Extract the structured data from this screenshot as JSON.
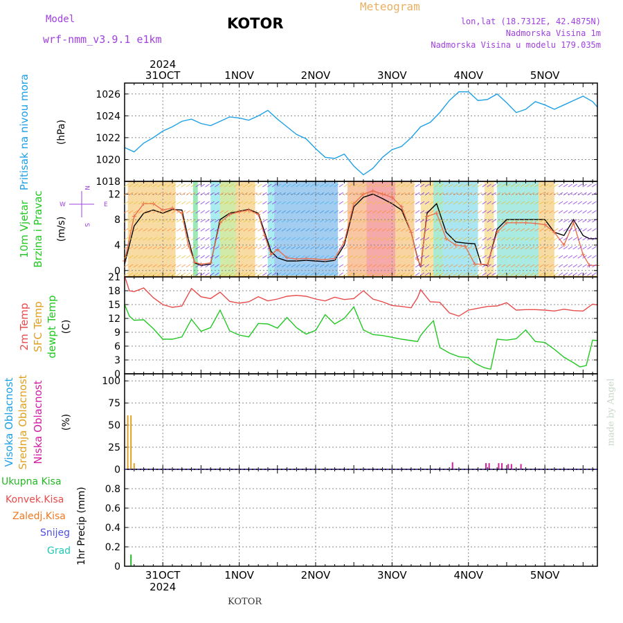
{
  "header": {
    "model_label": "Model",
    "model_name": "wrf-nmm_v3.9.1 e1km",
    "station": "KOTOR",
    "product": "Meteogram",
    "lonlat": "lon,lat (18.7312E, 42.4875N)",
    "elevation": "Nadmorska Visina 1m",
    "model_elevation": "Nadmorska Visina u modelu 179.035m",
    "footer_station": "KOTOR",
    "watermark": "made by Angel"
  },
  "colors": {
    "pressure": "#1ea0e6",
    "temp2m": "#e84a4a",
    "sfc_temp": "#e0a020",
    "dewpoint": "#22c822",
    "cloud_high": "#1ea0e6",
    "cloud_mid": "#e0a020",
    "cloud_low": "#d21ea0",
    "precip_total": "#22b822",
    "precip_conv": "#e84a4a",
    "precip_frz": "#f07820",
    "snow": "#5050e0",
    "hail": "#20c8b4",
    "wind_speed": "#000000",
    "gust": "#e87050"
  },
  "time_axis": {
    "year": "2024",
    "day_labels": [
      "31OCT",
      "1NOV",
      "2NOV",
      "3NOV",
      "4NOV",
      "5NOV"
    ],
    "start_hour": 0,
    "end_hour": 148.5
  },
  "chart_data": [
    {
      "type": "line",
      "ylabel": "Pritisak na nivou mora",
      "unit": "(hPa)",
      "ylim": [
        1018,
        1027
      ],
      "yticks": [
        1018,
        1020,
        1022,
        1024,
        1026
      ],
      "series": [
        {
          "key": "pressure",
          "x": [
            0,
            3,
            6,
            9,
            12,
            15,
            18,
            21,
            24,
            27,
            30,
            33,
            36,
            39,
            42,
            45,
            48,
            51,
            54,
            57,
            60,
            63,
            66,
            69,
            72,
            75,
            78,
            81,
            84,
            87,
            90,
            93,
            96,
            99,
            102,
            105,
            108,
            111,
            114,
            117,
            120,
            123,
            126,
            129,
            132,
            135,
            138,
            141,
            144,
            147,
            148.5
          ],
          "y": [
            1021.1,
            1020.7,
            1021.5,
            1022.0,
            1022.6,
            1023.0,
            1023.5,
            1023.7,
            1023.3,
            1023.1,
            1023.5,
            1023.9,
            1023.8,
            1023.6,
            1024.0,
            1024.5,
            1023.7,
            1023.0,
            1022.3,
            1021.9,
            1021.0,
            1020.2,
            1020.1,
            1020.5,
            1019.4,
            1018.6,
            1019.2,
            1020.2,
            1020.9,
            1021.2,
            1022.0,
            1023.0,
            1023.4,
            1024.3,
            1025.4,
            1026.2,
            1026.2,
            1025.4,
            1025.5,
            1026.0,
            1025.2,
            1024.3,
            1024.6,
            1025.3,
            1025.0,
            1024.6,
            1025.0,
            1025.4,
            1025.8,
            1025.3,
            1024.8
          ]
        }
      ]
    },
    {
      "type": "line",
      "ylabel": "10m Vjetar Brzina i Pravac",
      "unit": "(m/s)",
      "ylim": [
        -1,
        14
      ],
      "yticks": [
        0,
        4,
        8,
        12
      ],
      "legend_rose": "N S W E",
      "series": [
        {
          "key": "wind_speed",
          "x": [
            0,
            3,
            6,
            9,
            12,
            15,
            18,
            20,
            22,
            24,
            27,
            30,
            33,
            36,
            39,
            42,
            44,
            46,
            48,
            51,
            54,
            57,
            60,
            63,
            66,
            69,
            72,
            75,
            78,
            81,
            84,
            87,
            90,
            92,
            93,
            95,
            98,
            101,
            104,
            107,
            110,
            112,
            114,
            117,
            120,
            123,
            126,
            129,
            132,
            135,
            138,
            141,
            144,
            146,
            148.5
          ],
          "y": [
            1.0,
            7.0,
            9.0,
            9.5,
            9.0,
            9.6,
            9.5,
            5.0,
            1.2,
            0.8,
            1.0,
            8.0,
            9.0,
            9.3,
            9.6,
            9.0,
            6.0,
            3.0,
            2.0,
            1.5,
            1.5,
            1.6,
            1.5,
            1.4,
            1.6,
            4.0,
            10.0,
            11.5,
            12.0,
            11.3,
            10.5,
            9.5,
            6.0,
            2.0,
            0.5,
            9.0,
            10.5,
            6.0,
            4.5,
            4.3,
            4.2,
            1.0,
            0.8,
            6.5,
            8.0,
            8.0,
            8.0,
            8.0,
            8.0,
            6.0,
            5.5,
            8.0,
            5.5,
            5.0,
            5.0
          ]
        },
        {
          "key": "gust",
          "x": [
            0,
            3,
            6,
            9,
            12,
            15,
            18,
            20,
            22,
            24,
            27,
            30,
            33,
            36,
            39,
            42,
            44,
            46,
            48,
            51,
            54,
            57,
            60,
            63,
            66,
            69,
            72,
            75,
            78,
            81,
            84,
            87,
            90,
            92,
            93,
            95,
            98,
            101,
            104,
            107,
            110,
            112,
            114,
            117,
            120,
            123,
            126,
            129,
            132,
            135,
            138,
            141,
            144,
            146,
            148.5
          ],
          "y": [
            1.5,
            8.5,
            10.5,
            10.5,
            9.5,
            9.8,
            9.0,
            4.0,
            1.3,
            1.0,
            1.2,
            7.5,
            8.8,
            9.2,
            9.5,
            8.8,
            5.5,
            2.5,
            3.3,
            2.0,
            1.8,
            1.9,
            1.8,
            1.7,
            1.9,
            4.5,
            10.5,
            12.0,
            12.5,
            12.0,
            11.5,
            10.0,
            6.0,
            1.8,
            0.8,
            8.5,
            9.0,
            5.0,
            4.0,
            3.8,
            1.0,
            1.0,
            0.9,
            6.0,
            7.5,
            7.5,
            7.5,
            7.4,
            7.2,
            6.0,
            4.0,
            7.5,
            2.5,
            0.8,
            0.8
          ]
        }
      ]
    },
    {
      "type": "line",
      "ylabel": "2m Temp SFC Temp dewpt Temp",
      "unit": "(C)",
      "ylim": [
        0,
        21
      ],
      "yticks": [
        0,
        3,
        6,
        9,
        12,
        15,
        18,
        21
      ],
      "series": [
        {
          "key": "sfc_temp",
          "x": [
            0,
            148.5
          ],
          "y": [
            21.1,
            21.1
          ]
        },
        {
          "key": "temp2m",
          "x": [
            0,
            1.5,
            3,
            6,
            9,
            12,
            15,
            18,
            21,
            24,
            27,
            30,
            33,
            36,
            39,
            42,
            45,
            48,
            51,
            54,
            57,
            60,
            63,
            66,
            69,
            72,
            75,
            78,
            81,
            84,
            87,
            90,
            92,
            93,
            96,
            99,
            102,
            105,
            108,
            111,
            114,
            117,
            120,
            123,
            126,
            129,
            132,
            135,
            138,
            141,
            144,
            147,
            148.5
          ],
          "y": [
            21.2,
            18.0,
            17.8,
            18.6,
            16.5,
            15.0,
            14.4,
            14.7,
            18.5,
            16.7,
            16.3,
            17.7,
            15.7,
            15.3,
            15.6,
            16.7,
            15.8,
            16.2,
            16.8,
            17.0,
            16.8,
            16.2,
            15.8,
            16.6,
            16.1,
            16.3,
            18.0,
            16.2,
            15.6,
            14.8,
            14.6,
            14.3,
            16.5,
            18.2,
            15.6,
            15.5,
            13.2,
            12.5,
            13.8,
            14.2,
            14.6,
            14.7,
            15.4,
            13.8,
            13.9,
            13.9,
            13.8,
            13.6,
            14.0,
            13.7,
            13.6,
            15.1,
            14.9
          ]
        },
        {
          "key": "dewpoint",
          "x": [
            0,
            1.5,
            3,
            6,
            9,
            12,
            15,
            18,
            21,
            24,
            27,
            30,
            33,
            36,
            39,
            42,
            45,
            48,
            51,
            54,
            57,
            60,
            63,
            66,
            69,
            72,
            75,
            78,
            81,
            84,
            87,
            90,
            92,
            93,
            95,
            97,
            99,
            102,
            105,
            108,
            110,
            113,
            115,
            117,
            120,
            123,
            126,
            129,
            132,
            135,
            138,
            141,
            143,
            145,
            147,
            148.5
          ],
          "y": [
            15.0,
            12.5,
            11.6,
            11.7,
            9.8,
            7.5,
            7.5,
            8.0,
            11.8,
            9.2,
            10.0,
            13.8,
            9.3,
            8.4,
            8.0,
            10.9,
            10.8,
            9.9,
            12.2,
            10.0,
            8.6,
            9.4,
            12.8,
            10.8,
            12.0,
            14.5,
            9.5,
            8.5,
            8.3,
            7.9,
            7.5,
            7.2,
            7.0,
            8.3,
            10.0,
            11.5,
            5.7,
            4.5,
            3.7,
            3.5,
            2.3,
            1.3,
            1.0,
            7.5,
            7.3,
            7.6,
            9.5,
            7.0,
            6.8,
            5.3,
            3.6,
            2.4,
            1.5,
            1.8,
            7.3,
            7.2
          ]
        }
      ]
    },
    {
      "type": "bar",
      "ylabel": "Visoka Oblacnost Srednja Oblacnost Niska Oblacnost",
      "unit": "(%)",
      "ylim": [
        0,
        108
      ],
      "yticks": [
        0,
        25,
        50,
        75,
        100
      ],
      "series": [
        {
          "key": "cloud_mid",
          "x": [
            1,
            2,
            3
          ],
          "values": [
            61,
            61,
            7
          ]
        },
        {
          "key": "cloud_low",
          "x": [
            103,
            113.5,
            114.5,
            117.5,
            118.5,
            120.5,
            121.5,
            124.5
          ],
          "values": [
            8,
            7,
            7,
            7,
            7,
            6,
            6,
            6
          ]
        }
      ]
    },
    {
      "type": "bar",
      "ylabel": "Ukupna Kisa Konvek.Kisa Zaledj.Kisa Snijeg Grad",
      "unit": "1hr Precip (mm)",
      "ylim": [
        0,
        1.0
      ],
      "yticks": [
        0,
        0.2,
        0.4,
        0.6,
        0.8
      ],
      "series": [
        {
          "key": "precip_total",
          "x": [
            2
          ],
          "values": [
            0.12
          ]
        }
      ]
    }
  ]
}
